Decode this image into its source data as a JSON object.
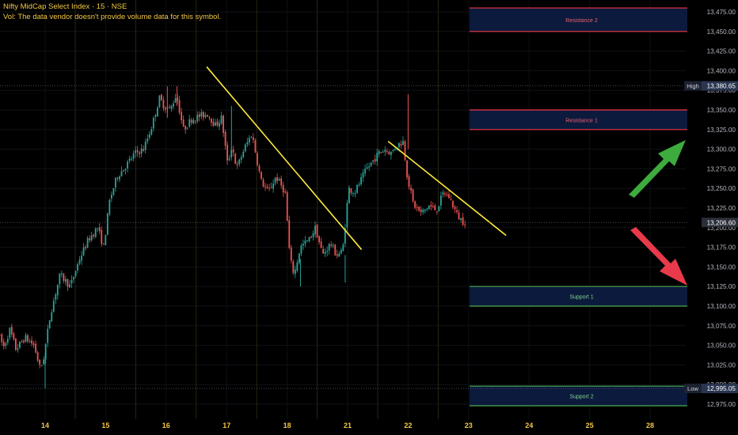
{
  "header": {
    "title": "Nifty MidCap Select Index · 15 · NSE",
    "volume_note": "Vol: The data vendor doesn't provide volume data for this symbol."
  },
  "colors": {
    "background": "#000000",
    "up": "#26a69a",
    "down": "#ef5350",
    "trendline": "#ffeb3b",
    "resistance_border": "#f23645",
    "support_border": "#4caf50",
    "zone_fill": "#0c1a3d",
    "arrow_up": "#3dab3d",
    "arrow_down": "#e83a4a",
    "axis_text": "#b2b5be",
    "date_text": "#f2c744",
    "header_text": "#f2c744"
  },
  "chart_data": {
    "type": "candlestick",
    "symbol": "Nifty MidCap Select Index",
    "interval": "15",
    "exchange": "NSE",
    "ylim": [
      12965,
      13480
    ],
    "y_ticks": [
      12975,
      13000,
      13025,
      13050,
      13075,
      13100,
      13125,
      13150,
      13175,
      13200,
      13225,
      13250,
      13275,
      13300,
      13325,
      13350,
      13375,
      13400,
      13425,
      13450,
      13475
    ],
    "y_tick_labels": [
      "12,975.00",
      "13,000.00",
      "13,025.00",
      "13,050.00",
      "13,075.00",
      "13,100.00",
      "13,125.00",
      "13,150.00",
      "13,175.00",
      "13,200.00",
      "13,225.00",
      "13,250.00",
      "13,275.00",
      "13,300.00",
      "13,325.00",
      "13,350.00",
      "13,375.00",
      "13,400.00",
      "13,425.00",
      "13,450.00",
      "13,475.00"
    ],
    "x_labels": [
      "14",
      "15",
      "16",
      "17",
      "18",
      "21",
      "22",
      "23",
      "24",
      "25",
      "28"
    ],
    "x_label_slot": [
      0,
      1,
      2,
      3,
      4,
      5,
      6,
      7,
      8,
      9,
      10
    ],
    "session_separators_after_slot": [
      0,
      1,
      2,
      3,
      4,
      5,
      6
    ],
    "price_path": [
      [
        -0.75,
        13065
      ],
      [
        -0.65,
        13048
      ],
      [
        -0.55,
        13070
      ],
      [
        -0.45,
        13045
      ],
      [
        -0.3,
        13060
      ],
      [
        -0.15,
        13050
      ],
      [
        -0.05,
        13020
      ],
      [
        0.0,
        13030
      ],
      [
        0.12,
        13090
      ],
      [
        0.28,
        13140
      ],
      [
        0.45,
        13125
      ],
      [
        0.6,
        13160
      ],
      [
        0.75,
        13185
      ],
      [
        0.9,
        13200
      ],
      [
        1.0,
        13175
      ],
      [
        1.1,
        13235
      ],
      [
        1.22,
        13265
      ],
      [
        1.38,
        13280
      ],
      [
        1.52,
        13295
      ],
      [
        1.66,
        13300
      ],
      [
        1.8,
        13330
      ],
      [
        1.92,
        13365
      ],
      [
        2.0,
        13355
      ],
      [
        2.1,
        13350
      ],
      [
        2.2,
        13370
      ],
      [
        2.32,
        13325
      ],
      [
        2.45,
        13338
      ],
      [
        2.58,
        13342
      ],
      [
        2.72,
        13345
      ],
      [
        2.85,
        13330
      ],
      [
        2.95,
        13340
      ],
      [
        3.05,
        13280
      ],
      [
        3.12,
        13305
      ],
      [
        3.2,
        13275
      ],
      [
        3.32,
        13300
      ],
      [
        3.45,
        13320
      ],
      [
        3.6,
        13260
      ],
      [
        3.72,
        13245
      ],
      [
        3.85,
        13265
      ],
      [
        4.0,
        13245
      ],
      [
        4.08,
        13160
      ],
      [
        4.15,
        13140
      ],
      [
        4.25,
        13175
      ],
      [
        4.4,
        13185
      ],
      [
        4.5,
        13200
      ],
      [
        4.62,
        13165
      ],
      [
        4.75,
        13180
      ],
      [
        4.85,
        13165
      ],
      [
        4.95,
        13170
      ],
      [
        5.05,
        13250
      ],
      [
        5.15,
        13245
      ],
      [
        5.25,
        13260
      ],
      [
        5.35,
        13275
      ],
      [
        5.45,
        13285
      ],
      [
        5.55,
        13295
      ],
      [
        5.65,
        13300
      ],
      [
        5.75,
        13295
      ],
      [
        5.85,
        13305
      ],
      [
        5.95,
        13310
      ],
      [
        6.02,
        13265
      ],
      [
        6.12,
        13230
      ],
      [
        6.25,
        13218
      ],
      [
        6.38,
        13228
      ],
      [
        6.5,
        13222
      ],
      [
        6.62,
        13245
      ],
      [
        6.72,
        13238
      ],
      [
        6.85,
        13215
      ],
      [
        6.95,
        13207
      ]
    ],
    "price_marks": [
      {
        "label": "High",
        "value": 13380.65,
        "value_label": "13,380.65"
      },
      {
        "label": "",
        "value": 13206.6,
        "value_label": "13,206.60"
      },
      {
        "label": "Low",
        "value": 12995.05,
        "value_label": "12,995.05"
      }
    ],
    "zones": [
      {
        "name": "Resistance 2",
        "from": 13450,
        "to": 13480,
        "kind": "resistance"
      },
      {
        "name": "Resistance 1",
        "from": 13325,
        "to": 13350,
        "kind": "resistance"
      },
      {
        "name": "Support 1",
        "from": 13100,
        "to": 13125,
        "kind": "support"
      },
      {
        "name": "Support 2",
        "from": 12973,
        "to": 12998,
        "kind": "support"
      }
    ],
    "trendlines": [
      {
        "from": {
          "slot": 2.67,
          "price": 13405
        },
        "to": {
          "slot": 5.23,
          "price": 13172
        }
      },
      {
        "from": {
          "slot": 5.67,
          "price": 13310
        },
        "to": {
          "slot": 7.62,
          "price": 13190
        }
      }
    ],
    "arrows": [
      {
        "direction": "up",
        "color_key": "arrow_up"
      },
      {
        "direction": "down",
        "color_key": "arrow_down"
      }
    ]
  }
}
